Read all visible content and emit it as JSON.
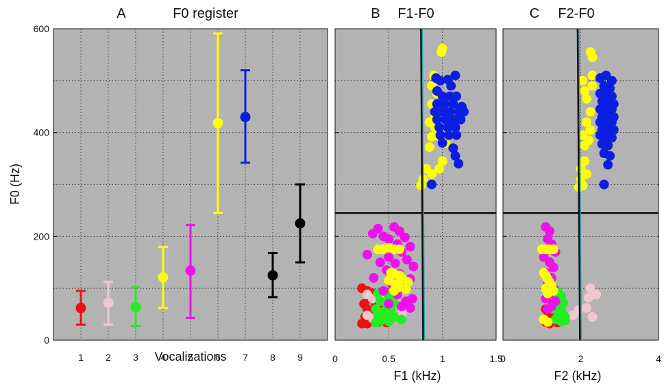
{
  "colors": {
    "red": "#ee1111",
    "pink": "#f0c8d0",
    "green": "#22ee22",
    "yellow": "#ffff00",
    "magenta": "#ee11ee",
    "blue": "#0b1fe0",
    "black": "#000000",
    "panel_bg": "#b3b3b3",
    "grid": "#222222",
    "teal": "#2aa6b0"
  },
  "chart_data": [
    {
      "panel": "A",
      "type": "scatter",
      "panel_letter": "A",
      "title": "F0 register",
      "xlabel": "Vocalizations",
      "ylabel": "F0 (Hz)",
      "xlim": [
        0,
        10
      ],
      "ylim": [
        0,
        600
      ],
      "xticks": [
        "1",
        "2",
        "3",
        "4",
        "5",
        "6",
        "7",
        "8",
        "9"
      ],
      "yticks": [
        "0",
        "200",
        "400",
        "600"
      ],
      "grid": true,
      "series": [
        {
          "x": 1,
          "mean": 62,
          "low": 30,
          "high": 95,
          "color": "red"
        },
        {
          "x": 2,
          "mean": 72,
          "low": 30,
          "high": 112,
          "color": "pink"
        },
        {
          "x": 3,
          "mean": 64,
          "low": 27,
          "high": 102,
          "color": "green"
        },
        {
          "x": 4,
          "mean": 121,
          "low": 62,
          "high": 180,
          "color": "yellow"
        },
        {
          "x": 5,
          "mean": 134,
          "low": 43,
          "high": 222,
          "color": "magenta"
        },
        {
          "x": 6,
          "mean": 418,
          "low": 245,
          "high": 591,
          "color": "yellow"
        },
        {
          "x": 7,
          "mean": 430,
          "low": 342,
          "high": 520,
          "color": "blue"
        },
        {
          "x": 8,
          "mean": 125,
          "low": 83,
          "high": 168,
          "color": "black"
        },
        {
          "x": 9,
          "mean": 225,
          "low": 150,
          "high": 300,
          "color": "black"
        }
      ]
    },
    {
      "panel": "B",
      "type": "scatter",
      "panel_letter": "B",
      "title": "F1-F0",
      "xlabel": "F1 (kHz)",
      "xlim": [
        0,
        1.5
      ],
      "ylim": [
        0,
        600
      ],
      "xticks": [
        "0",
        "0.5",
        "1",
        "1.5"
      ],
      "grid": true,
      "hline": 245,
      "vline": [
        0.8,
        0.82
      ],
      "points": {
        "yellow": [
          [
            0.99,
            555
          ],
          [
            1.0,
            562
          ],
          [
            0.92,
            510
          ],
          [
            0.9,
            490
          ],
          [
            0.95,
            475
          ],
          [
            0.9,
            455
          ],
          [
            0.93,
            430
          ],
          [
            0.88,
            420
          ],
          [
            0.93,
            410
          ],
          [
            0.9,
            392
          ],
          [
            0.95,
            395
          ],
          [
            1.03,
            380
          ],
          [
            0.88,
            372
          ],
          [
            1.0,
            345
          ],
          [
            0.97,
            330
          ],
          [
            0.85,
            330
          ],
          [
            0.9,
            320
          ],
          [
            0.82,
            310
          ],
          [
            0.8,
            298
          ]
        ],
        "blue": [
          [
            0.94,
            505
          ],
          [
            0.98,
            500
          ],
          [
            1.05,
            502
          ],
          [
            1.12,
            510
          ],
          [
            1.08,
            490
          ],
          [
            0.95,
            480
          ],
          [
            1.0,
            470
          ],
          [
            1.07,
            470
          ],
          [
            1.13,
            470
          ],
          [
            0.95,
            455
          ],
          [
            1.02,
            455
          ],
          [
            1.1,
            455
          ],
          [
            1.18,
            450
          ],
          [
            0.93,
            440
          ],
          [
            1.0,
            440
          ],
          [
            1.07,
            440
          ],
          [
            1.15,
            440
          ],
          [
            1.2,
            440
          ],
          [
            0.95,
            425
          ],
          [
            1.03,
            425
          ],
          [
            1.1,
            425
          ],
          [
            1.17,
            425
          ],
          [
            0.97,
            410
          ],
          [
            1.05,
            410
          ],
          [
            1.12,
            410
          ],
          [
            0.98,
            395
          ],
          [
            1.06,
            395
          ],
          [
            1.13,
            395
          ],
          [
            1.0,
            380
          ],
          [
            1.1,
            370
          ],
          [
            1.12,
            355
          ],
          [
            1.15,
            340
          ],
          [
            0.9,
            300
          ]
        ],
        "magenta": [
          [
            0.35,
            205
          ],
          [
            0.4,
            215
          ],
          [
            0.45,
            200
          ],
          [
            0.55,
            218
          ],
          [
            0.6,
            210
          ],
          [
            0.65,
            198
          ],
          [
            0.5,
            195
          ],
          [
            0.58,
            185
          ],
          [
            0.7,
            180
          ],
          [
            0.47,
            175
          ],
          [
            0.62,
            170
          ],
          [
            0.3,
            165
          ],
          [
            0.5,
            160
          ],
          [
            0.67,
            155
          ],
          [
            0.42,
            150
          ],
          [
            0.56,
            148
          ],
          [
            0.73,
            142
          ],
          [
            0.48,
            135
          ],
          [
            0.6,
            128
          ],
          [
            0.36,
            120
          ],
          [
            0.7,
            118
          ],
          [
            0.52,
            110
          ],
          [
            0.64,
            100
          ],
          [
            0.45,
            95
          ],
          [
            0.58,
            88
          ],
          [
            0.72,
            80
          ],
          [
            0.66,
            75
          ],
          [
            0.5,
            70
          ],
          [
            0.62,
            65
          ],
          [
            0.7,
            62
          ]
        ],
        "yellow_low": [
          [
            0.4,
            175
          ],
          [
            0.45,
            175
          ],
          [
            0.5,
            178
          ],
          [
            0.55,
            175
          ],
          [
            0.6,
            175
          ],
          [
            0.52,
            130
          ],
          [
            0.55,
            128
          ],
          [
            0.6,
            125
          ],
          [
            0.63,
            118
          ],
          [
            0.68,
            112
          ],
          [
            0.5,
            115
          ],
          [
            0.56,
            108
          ],
          [
            0.6,
            102
          ],
          [
            0.66,
            98
          ],
          [
            0.55,
            95
          ]
        ],
        "red": [
          [
            0.25,
            100
          ],
          [
            0.3,
            95
          ],
          [
            0.35,
            90
          ],
          [
            0.32,
            80
          ],
          [
            0.27,
            70
          ],
          [
            0.38,
            70
          ],
          [
            0.42,
            65
          ],
          [
            0.3,
            60
          ],
          [
            0.35,
            55
          ],
          [
            0.4,
            50
          ],
          [
            0.28,
            45
          ],
          [
            0.45,
            42
          ],
          [
            0.33,
            38
          ],
          [
            0.4,
            35
          ],
          [
            0.3,
            32
          ],
          [
            0.25,
            32
          ],
          [
            0.48,
            34
          ]
        ],
        "pink": [
          [
            0.3,
            88
          ],
          [
            0.35,
            80
          ],
          [
            0.45,
            82
          ],
          [
            0.6,
            95
          ],
          [
            0.55,
            75
          ],
          [
            0.5,
            60
          ],
          [
            0.63,
            58
          ],
          [
            0.3,
            48
          ],
          [
            0.43,
            50
          ],
          [
            0.35,
            42
          ],
          [
            0.62,
            45
          ]
        ],
        "green": [
          [
            0.4,
            90
          ],
          [
            0.45,
            95
          ],
          [
            0.5,
            85
          ],
          [
            0.42,
            75
          ],
          [
            0.48,
            70
          ],
          [
            0.55,
            72
          ],
          [
            0.38,
            60
          ],
          [
            0.45,
            55
          ],
          [
            0.52,
            58
          ],
          [
            0.4,
            48
          ],
          [
            0.47,
            45
          ],
          [
            0.55,
            45
          ],
          [
            0.43,
            38
          ],
          [
            0.5,
            36
          ],
          [
            0.38,
            34
          ],
          [
            0.62,
            40
          ]
        ]
      }
    },
    {
      "panel": "C",
      "type": "scatter",
      "panel_letter": "C",
      "title": "F2-F0",
      "xlabel": "F2 (kHz)",
      "xlim": [
        0,
        4
      ],
      "ylim": [
        0,
        600
      ],
      "xticks": [
        "0",
        "2",
        "4"
      ],
      "grid": true,
      "hline": 245,
      "vline": [
        1.92,
        1.98
      ],
      "points": {
        "yellow": [
          [
            2.25,
            555
          ],
          [
            2.3,
            545
          ],
          [
            2.3,
            510
          ],
          [
            2.05,
            500
          ],
          [
            2.3,
            490
          ],
          [
            2.1,
            480
          ],
          [
            2.15,
            465
          ],
          [
            2.25,
            440
          ],
          [
            2.15,
            420
          ],
          [
            2.25,
            405
          ],
          [
            2.05,
            395
          ],
          [
            2.2,
            385
          ],
          [
            2.1,
            375
          ],
          [
            2.1,
            345
          ],
          [
            2.0,
            330
          ],
          [
            2.15,
            320
          ],
          [
            2.0,
            310
          ],
          [
            2.05,
            298
          ],
          [
            1.95,
            295
          ]
        ],
        "blue": [
          [
            2.5,
            505
          ],
          [
            2.65,
            510
          ],
          [
            2.8,
            500
          ],
          [
            2.6,
            490
          ],
          [
            2.75,
            485
          ],
          [
            2.5,
            475
          ],
          [
            2.65,
            475
          ],
          [
            2.8,
            470
          ],
          [
            2.55,
            460
          ],
          [
            2.7,
            460
          ],
          [
            2.85,
            455
          ],
          [
            2.5,
            445
          ],
          [
            2.65,
            445
          ],
          [
            2.8,
            445
          ],
          [
            2.55,
            430
          ],
          [
            2.7,
            430
          ],
          [
            2.85,
            430
          ],
          [
            2.5,
            420
          ],
          [
            2.65,
            420
          ],
          [
            2.8,
            420
          ],
          [
            2.55,
            405
          ],
          [
            2.7,
            405
          ],
          [
            2.85,
            405
          ],
          [
            2.5,
            395
          ],
          [
            2.65,
            390
          ],
          [
            2.8,
            390
          ],
          [
            2.55,
            378
          ],
          [
            2.7,
            375
          ],
          [
            2.6,
            360
          ],
          [
            2.75,
            355
          ],
          [
            2.7,
            338
          ],
          [
            2.6,
            300
          ]
        ],
        "magenta": [
          [
            1.1,
            218
          ],
          [
            1.2,
            210
          ],
          [
            1.15,
            195
          ],
          [
            1.25,
            185
          ],
          [
            1.1,
            175
          ],
          [
            1.35,
            170
          ],
          [
            1.05,
            160
          ],
          [
            1.2,
            150
          ],
          [
            1.3,
            140
          ],
          [
            1.1,
            130
          ],
          [
            1.25,
            120
          ],
          [
            1.15,
            110
          ],
          [
            1.3,
            100
          ],
          [
            1.2,
            90
          ],
          [
            1.1,
            80
          ],
          [
            1.35,
            75
          ],
          [
            1.25,
            65
          ],
          [
            1.15,
            60
          ]
        ],
        "yellow_low": [
          [
            1.0,
            175
          ],
          [
            1.1,
            175
          ],
          [
            1.2,
            175
          ],
          [
            1.3,
            175
          ],
          [
            1.05,
            130
          ],
          [
            1.1,
            125
          ],
          [
            1.15,
            118
          ],
          [
            1.2,
            112
          ],
          [
            1.25,
            105
          ],
          [
            1.1,
            100
          ],
          [
            1.3,
            95
          ],
          [
            1.15,
            90
          ],
          [
            1.05,
            40
          ],
          [
            1.15,
            35
          ]
        ],
        "red": [
          [
            1.15,
            100
          ],
          [
            1.25,
            95
          ],
          [
            1.35,
            90
          ],
          [
            1.2,
            80
          ],
          [
            1.3,
            70
          ],
          [
            1.1,
            60
          ],
          [
            1.25,
            55
          ],
          [
            1.35,
            50
          ],
          [
            1.15,
            45
          ],
          [
            1.3,
            40
          ],
          [
            1.1,
            35
          ],
          [
            1.2,
            32
          ],
          [
            1.4,
            34
          ]
        ],
        "pink": [
          [
            2.25,
            100
          ],
          [
            2.4,
            88
          ],
          [
            2.2,
            82
          ],
          [
            2.15,
            62
          ],
          [
            1.95,
            58
          ],
          [
            2.3,
            45
          ],
          [
            1.8,
            48
          ]
        ],
        "green": [
          [
            1.3,
            90
          ],
          [
            1.4,
            95
          ],
          [
            1.5,
            85
          ],
          [
            1.35,
            78
          ],
          [
            1.45,
            70
          ],
          [
            1.55,
            72
          ],
          [
            1.3,
            60
          ],
          [
            1.4,
            55
          ],
          [
            1.5,
            58
          ],
          [
            1.45,
            48
          ],
          [
            1.6,
            45
          ],
          [
            1.35,
            40
          ],
          [
            1.5,
            36
          ],
          [
            1.6,
            38
          ]
        ]
      }
    }
  ]
}
